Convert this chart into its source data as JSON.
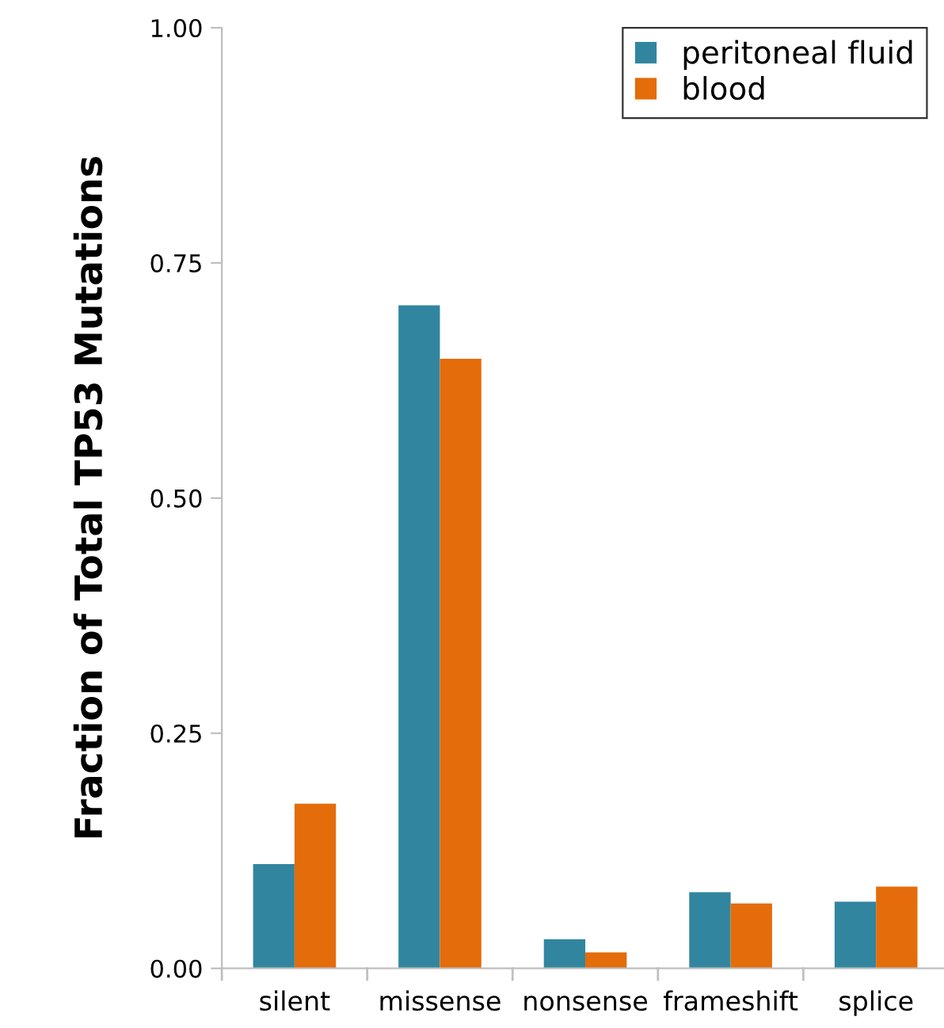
{
  "chart_data": {
    "type": "bar",
    "ylabel": "Fraction of Total TP53 Mutations",
    "categories": [
      "silent",
      "missense",
      "nonsense",
      "frameshift",
      "splice"
    ],
    "series": [
      {
        "name": "peritoneal fluid",
        "color": "#32859f",
        "values": [
          0.111,
          0.705,
          0.031,
          0.081,
          0.071
        ]
      },
      {
        "name": "blood",
        "color": "#e46c0a",
        "values": [
          0.175,
          0.648,
          0.017,
          0.069,
          0.087
        ]
      }
    ],
    "ylim": [
      0,
      1.0
    ],
    "yticks": [
      {
        "value": 0,
        "label": "0.00"
      },
      {
        "value": 0.25,
        "label": "0.25"
      },
      {
        "value": 0.5,
        "label": "0.50"
      },
      {
        "value": 0.75,
        "label": "0.75"
      },
      {
        "value": 1.0,
        "label": "1.00"
      }
    ],
    "grid": false,
    "legend": "top right"
  }
}
